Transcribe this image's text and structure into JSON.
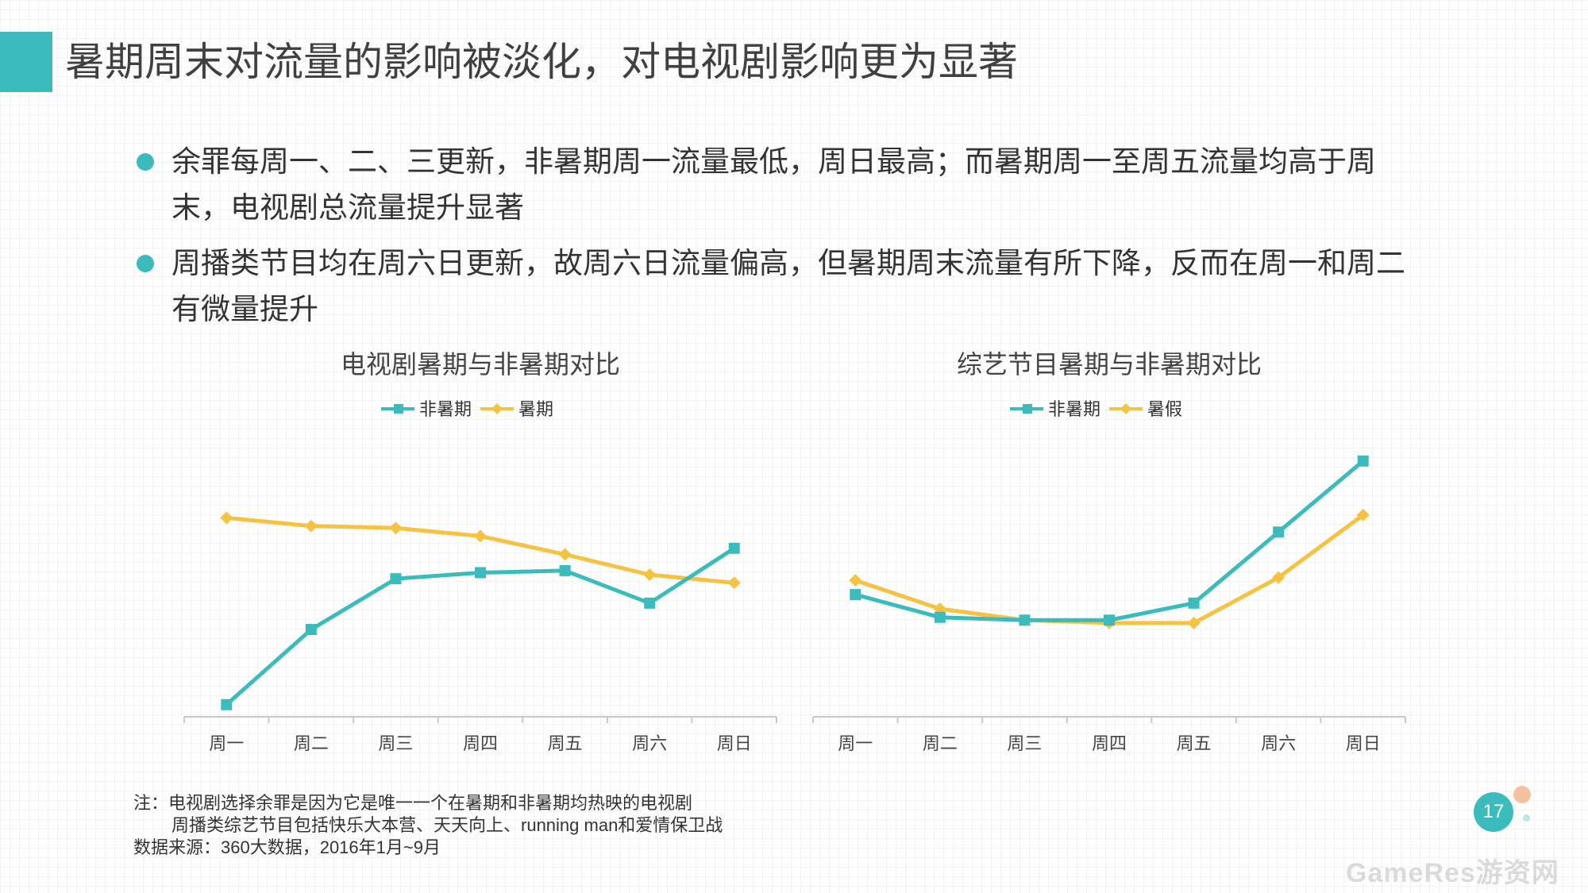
{
  "page": {
    "title": "暑期周末对流量的影响被淡化，对电视剧影响更为显著",
    "page_number": "17",
    "watermark": "GameRes游资网"
  },
  "bullets": [
    "余罪每周一、二、三更新，非暑期周一流量最低，周日最高；而暑期周一至周五流量均高于周末，电视剧总流量提升显著",
    "周播类节目均在周六日更新，故周六日流量偏高，但暑期周末流量有所下降，反而在周一和周二有微量提升"
  ],
  "notes": {
    "line1": "注：电视剧选择余罪是因为它是唯一一个在暑期和非暑期均热映的电视剧",
    "line2": "周播类综艺节目包括快乐大本营、天天向上、running man和爱情保卫战",
    "source": "数据来源：360大数据，2016年1月~9月"
  },
  "colors": {
    "accent": "#3bbbbb",
    "series_teal": "#3bbbbb",
    "series_yellow": "#f5c242"
  },
  "chart_data": [
    {
      "type": "line",
      "title": "电视剧暑期与非暑期对比",
      "categories": [
        "周一",
        "周二",
        "周三",
        "周四",
        "周五",
        "周六",
        "周日"
      ],
      "series": [
        {
          "name": "非暑期",
          "color": "#3bbbbb",
          "marker": "square",
          "values": [
            6,
            43,
            68,
            71,
            72,
            56,
            83
          ]
        },
        {
          "name": "暑期",
          "color": "#f5c242",
          "marker": "diamond",
          "values": [
            98,
            94,
            93,
            89,
            80,
            70,
            66
          ]
        }
      ],
      "ylim": [
        0,
        140
      ],
      "grid": false,
      "legend": "top"
    },
    {
      "type": "line",
      "title": "综艺节目暑期与非暑期对比",
      "categories": [
        "周一",
        "周二",
        "周三",
        "周四",
        "周五",
        "周六",
        "周日"
      ],
      "series": [
        {
          "name": "非暑期",
          "color": "#3bbbbb",
          "marker": "square",
          "values": [
            43,
            35,
            34,
            34,
            40,
            65,
            90
          ]
        },
        {
          "name": "暑假",
          "color": "#f5c242",
          "marker": "diamond",
          "values": [
            48,
            38,
            34,
            33,
            33,
            49,
            71
          ]
        }
      ],
      "ylim": [
        0,
        100
      ],
      "grid": false,
      "legend": "top"
    }
  ]
}
